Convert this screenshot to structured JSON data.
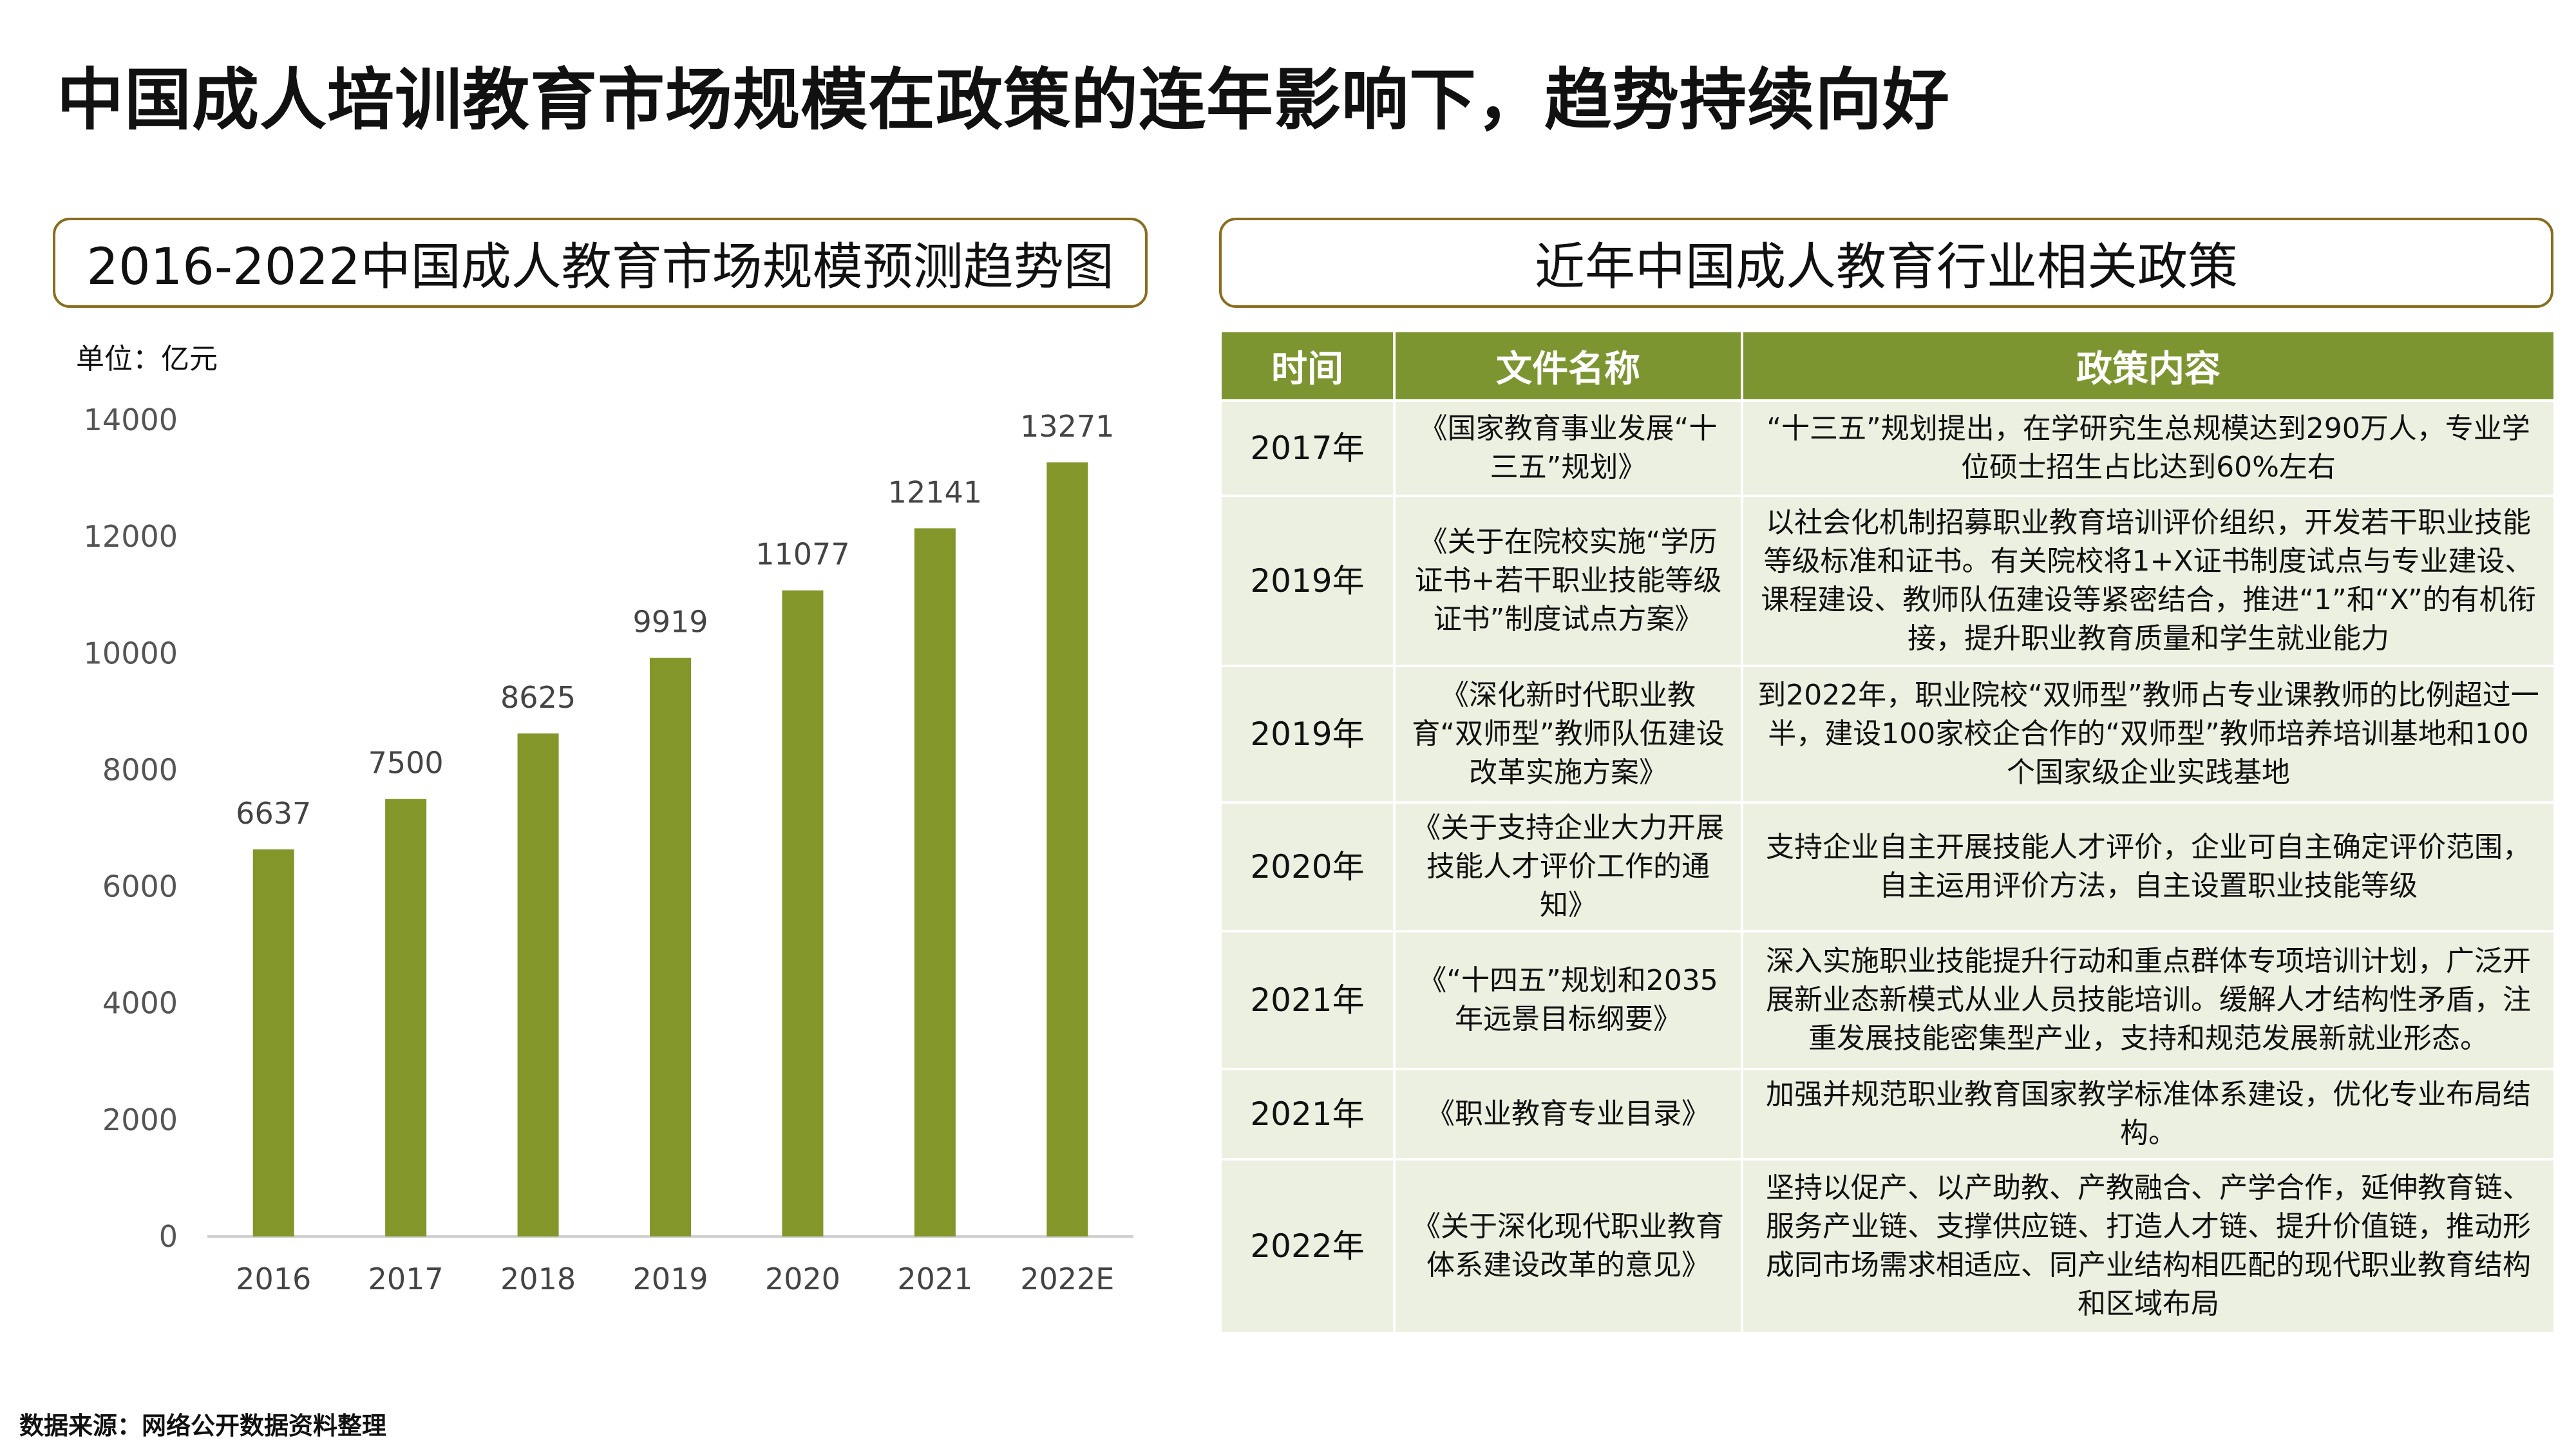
{
  "page": {
    "title": "中国成人培训教育市场规模在政策的连年影响下，趋势持续向好",
    "source": "数据来源：网络公开数据资料整理"
  },
  "chart_panel": {
    "header": "2016-2022中国成人教育市场规模预测趋势图"
  },
  "chart_data": {
    "type": "bar",
    "unit_label": "单位：亿元",
    "categories": [
      "2016",
      "2017",
      "2018",
      "2019",
      "2020",
      "2021",
      "2022E"
    ],
    "values": [
      6637,
      7500,
      8625,
      9919,
      11077,
      12141,
      13271
    ],
    "ylim": [
      0,
      14000
    ],
    "yticks": [
      0,
      2000,
      4000,
      6000,
      8000,
      10000,
      12000,
      14000
    ],
    "grid": false,
    "data_labels": true,
    "bar_color": "#82962a"
  },
  "table_panel": {
    "header": "近年中国成人教育行业相关政策",
    "columns": [
      "时间",
      "文件名称",
      "政策内容"
    ],
    "rows": [
      {
        "time": "2017年",
        "doc": "《国家教育事业发展“十三五”规划》",
        "content": "“十三五”规划提出，在学研究生总规模达到290万人，专业学位硕士招生占比达到60%左右"
      },
      {
        "time": "2019年",
        "doc": "《关于在院校实施“学历证书+若干职业技能等级证书”制度试点方案》",
        "content": "以社会化机制招募职业教育培训评价组织，开发若干职业技能等级标准和证书。有关院校将1+X证书制度试点与专业建设、课程建设、教师队伍建设等紧密结合，推进“1”和“X”的有机衔接，提升职业教育质量和学生就业能力"
      },
      {
        "time": "2019年",
        "doc": "《深化新时代职业教育“双师型”教师队伍建设改革实施方案》",
        "content": "到2022年，职业院校“双师型”教师占专业课教师的比例超过一半，建设100家校企合作的“双师型”教师培养培训基地和100个国家级企业实践基地"
      },
      {
        "time": "2020年",
        "doc": "《关于支持企业大力开展技能人才评价工作的通知》",
        "content": "支持企业自主开展技能人才评价，企业可自主确定评价范围，自主运用评价方法，自主设置职业技能等级"
      },
      {
        "time": "2021年",
        "doc": "《“十四五”规划和2035年远景目标纲要》",
        "content": "深入实施职业技能提升行动和重点群体专项培训计划，广泛开展新业态新模式从业人员技能培训。缓解人才结构性矛盾，注重发展技能密集型产业，支持和规范发展新就业形态。"
      },
      {
        "time": "2021年",
        "doc": "《职业教育专业目录》",
        "content": "加强并规范职业教育国家教学标准体系建设，优化专业布局结构。"
      },
      {
        "time": "2022年",
        "doc": "《关于深化现代职业教育体系建设改革的意见》",
        "content": "坚持以促产、以产助教、产教融合、产学合作，延伸教育链、服务产业链、支撑供应链、打造人才链、提升价值链，推动形成同市场需求相适应、同产业结构相匹配的现代职业教育结构和区域布局"
      }
    ]
  },
  "colors": {
    "accent_green": "#7d9530",
    "cell_bg": "#ecf0e0",
    "border_gold": "#8a6d1e"
  }
}
